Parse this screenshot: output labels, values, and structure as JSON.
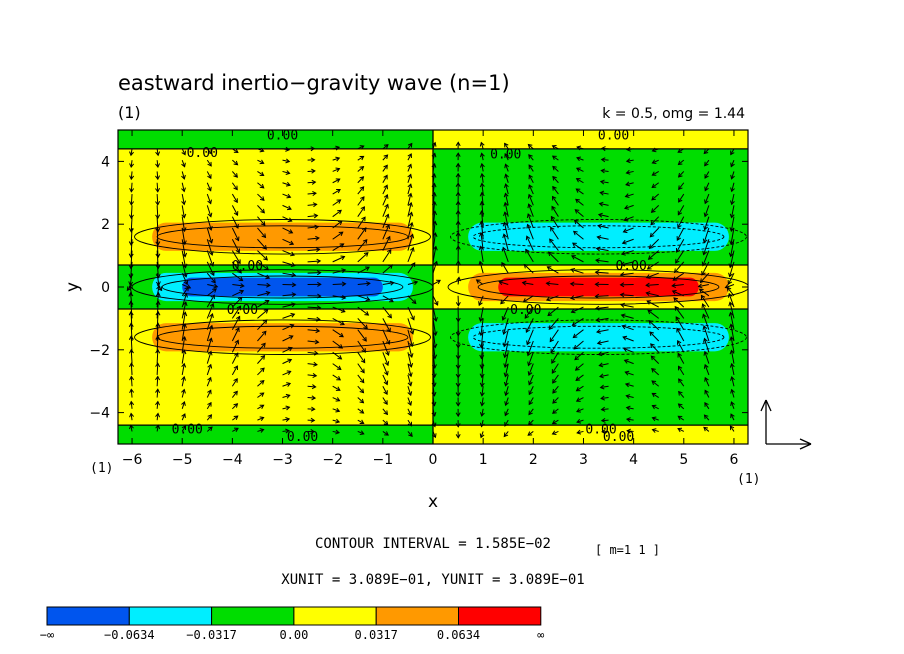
{
  "chart_data": {
    "type": "contour",
    "title": "eastward inertio−gravity wave (n=1)",
    "panel_label": "(1)",
    "params_text": "k = 0.5, omg = 1.44",
    "xlabel": "x",
    "ylabel": "y",
    "xlim": [
      -6.28,
      6.28
    ],
    "ylim": [
      -5,
      5
    ],
    "x_ticks": [
      -6,
      -5,
      -4,
      -3,
      -2,
      -1,
      0,
      1,
      2,
      3,
      4,
      5,
      6
    ],
    "y_ticks": [
      -4,
      -2,
      0,
      2,
      4
    ],
    "x_tick_labels": [
      "−6",
      "−5",
      "−4",
      "−3",
      "−2",
      "−1",
      "0",
      "1",
      "2",
      "3",
      "4",
      "5",
      "6"
    ],
    "y_tick_labels": [
      "−4",
      "−2",
      "0",
      "2",
      "4"
    ],
    "corner_label_left": "(1)",
    "corner_label_right": "(1)",
    "contour_labels": [
      {
        "text": "0.00",
        "x": -3.0,
        "y": 4.85
      },
      {
        "text": "0.00",
        "x": -4.6,
        "y": 4.3
      },
      {
        "text": "0.00",
        "x": 1.45,
        "y": 4.25
      },
      {
        "text": "0.00",
        "x": 3.6,
        "y": 4.85
      },
      {
        "text": "0.00",
        "x": -3.7,
        "y": 0.7
      },
      {
        "text": "0.00",
        "x": -3.8,
        "y": -0.7
      },
      {
        "text": "0.00",
        "x": 3.95,
        "y": 0.7
      },
      {
        "text": "0.00",
        "x": 1.85,
        "y": -0.7
      },
      {
        "text": "0.00",
        "x": -4.9,
        "y": -4.5
      },
      {
        "text": "0.00",
        "x": -2.6,
        "y": -4.75
      },
      {
        "text": "0.00",
        "x": 3.35,
        "y": -4.5
      },
      {
        "text": "0.00",
        "x": 3.7,
        "y": -4.75
      }
    ],
    "field": {
      "description": "shaded field by longitude (cos kx sign) and latitude bands",
      "bands_y": [
        {
          "from": 4.4,
          "to": 5.0,
          "sign": -1,
          "level": 1
        },
        {
          "from": 0.7,
          "to": 4.4,
          "sign": 1,
          "level": 1
        },
        {
          "from": 1.15,
          "to": 2.05,
          "sign": 1,
          "level": 2
        },
        {
          "from": -0.7,
          "to": 0.7,
          "sign": -1,
          "level": 1
        },
        {
          "from": -0.45,
          "to": 0.45,
          "sign": -1,
          "level": 2
        },
        {
          "from": -0.3,
          "to": 0.3,
          "sign": -1,
          "level": 3
        },
        {
          "from": -4.4,
          "to": -0.7,
          "sign": 1,
          "level": 1
        },
        {
          "from": -2.05,
          "to": -1.15,
          "sign": 1,
          "level": 2
        },
        {
          "from": -5.0,
          "to": -4.4,
          "sign": -1,
          "level": 1
        }
      ]
    },
    "contour_interval_text": "CONTOUR INTERVAL = 1.585E−02",
    "m_text": "[ m=1 1 ]",
    "units_text": "XUNIT = 3.089E−01, YUNIT = 3.089E−01",
    "colorbar": {
      "colors": [
        "#0055ee",
        "#00eeff",
        "#00dd00",
        "#ffff00",
        "#ff9900",
        "#ff0000"
      ],
      "labels": [
        "−∞",
        "−0.0634",
        "−0.0317",
        "0.00",
        "0.0317",
        "0.0634",
        "∞"
      ]
    }
  }
}
